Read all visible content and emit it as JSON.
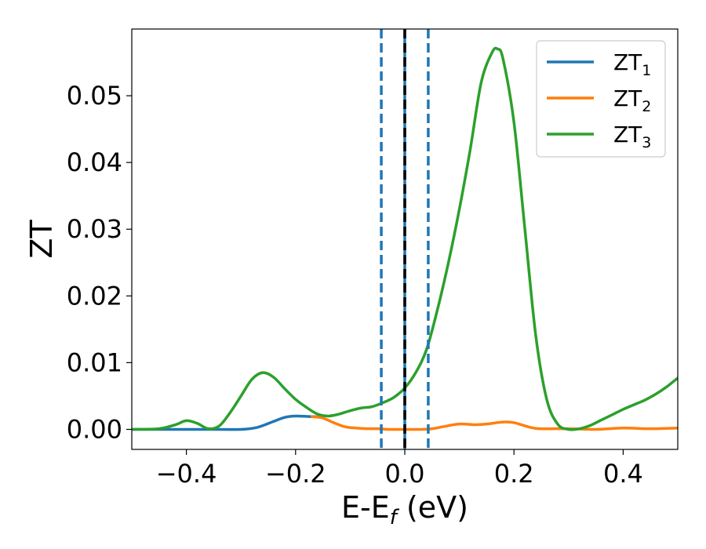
{
  "chart_data": {
    "type": "line",
    "title": "",
    "xlabel": "E-E",
    "xlabel_sub": "f",
    "xlabel_unit": " (eV)",
    "ylabel": "ZT",
    "xlim": [
      -0.5,
      0.5
    ],
    "ylim": [
      -0.003,
      0.06
    ],
    "grid": false,
    "legend_position": "upper right",
    "x_ticks": [
      {
        "value": -0.4,
        "label": "−0.4"
      },
      {
        "value": -0.2,
        "label": "−0.2"
      },
      {
        "value": 0.0,
        "label": "0.0"
      },
      {
        "value": 0.2,
        "label": "0.2"
      },
      {
        "value": 0.4,
        "label": "0.4"
      }
    ],
    "y_ticks": [
      {
        "value": 0.0,
        "label": "0.00"
      },
      {
        "value": 0.01,
        "label": "0.01"
      },
      {
        "value": 0.02,
        "label": "0.02"
      },
      {
        "value": 0.03,
        "label": "0.03"
      },
      {
        "value": 0.04,
        "label": "0.04"
      },
      {
        "value": 0.05,
        "label": "0.05"
      }
    ],
    "vertical_lines": [
      {
        "x": -0.043,
        "style": "dashed",
        "color": "#1f77b4"
      },
      {
        "x": 0.0,
        "style": "solid",
        "color": "#1f77b4"
      },
      {
        "x": 0.0,
        "style": "dashed",
        "color": "#000000"
      },
      {
        "x": 0.043,
        "style": "dashed",
        "color": "#1f77b4"
      }
    ],
    "series": [
      {
        "name": "ZT",
        "name_sub": "1",
        "color": "#1f77b4",
        "x": [
          -0.5,
          -0.35,
          -0.3,
          -0.27,
          -0.24,
          -0.22,
          -0.2,
          -0.17,
          -0.15
        ],
        "y": [
          0.0,
          0.0,
          0.0,
          0.0003,
          0.0012,
          0.0018,
          0.002,
          0.0019,
          0.0019
        ]
      },
      {
        "name": "ZT",
        "name_sub": "2",
        "color": "#ff7f0e",
        "x": [
          -0.17,
          -0.15,
          -0.13,
          -0.11,
          -0.09,
          -0.07,
          -0.05,
          -0.03,
          0.0,
          0.03,
          0.05,
          0.07,
          0.1,
          0.13,
          0.15,
          0.18,
          0.2,
          0.23,
          0.25,
          0.3,
          0.35,
          0.4,
          0.45,
          0.5
        ],
        "y": [
          0.0019,
          0.0017,
          0.001,
          0.0004,
          0.0002,
          0.0001,
          0.0001,
          0.0,
          0.0,
          0.0,
          0.0001,
          0.0004,
          0.0008,
          0.0007,
          0.0008,
          0.0011,
          0.001,
          0.0003,
          0.0001,
          0.0001,
          0.0,
          0.0002,
          0.0001,
          0.0002
        ]
      },
      {
        "name": "ZT",
        "name_sub": "3",
        "color": "#2ca02c",
        "x": [
          -0.5,
          -0.45,
          -0.42,
          -0.4,
          -0.38,
          -0.36,
          -0.34,
          -0.32,
          -0.3,
          -0.28,
          -0.26,
          -0.24,
          -0.22,
          -0.2,
          -0.18,
          -0.16,
          -0.14,
          -0.12,
          -0.1,
          -0.08,
          -0.06,
          -0.04,
          -0.02,
          0.0,
          0.02,
          0.04,
          0.06,
          0.08,
          0.1,
          0.12,
          0.14,
          0.16,
          0.17,
          0.18,
          0.2,
          0.22,
          0.24,
          0.26,
          0.28,
          0.3,
          0.32,
          0.34,
          0.36,
          0.38,
          0.4,
          0.42,
          0.44,
          0.46,
          0.48,
          0.5
        ],
        "y": [
          0.0,
          0.0001,
          0.0007,
          0.0013,
          0.0009,
          0.0001,
          0.0005,
          0.0025,
          0.005,
          0.0075,
          0.0085,
          0.0078,
          0.0061,
          0.0045,
          0.0033,
          0.0023,
          0.002,
          0.0023,
          0.0028,
          0.0032,
          0.0034,
          0.004,
          0.0048,
          0.0062,
          0.0085,
          0.012,
          0.018,
          0.025,
          0.033,
          0.042,
          0.052,
          0.0565,
          0.057,
          0.0555,
          0.046,
          0.03,
          0.014,
          0.0045,
          0.0008,
          0.0,
          0.0001,
          0.0006,
          0.0014,
          0.0022,
          0.003,
          0.0037,
          0.0044,
          0.0053,
          0.0064,
          0.0077
        ]
      }
    ]
  }
}
